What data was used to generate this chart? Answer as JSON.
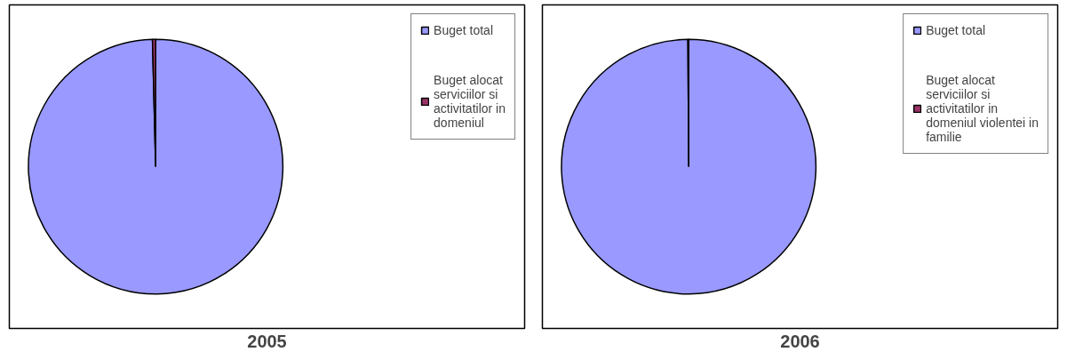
{
  "chart_data": [
    {
      "type": "pie",
      "title": "2005",
      "categories": [
        "Buget total",
        "Buget alocat serviciilor si activitatilor in domeniul"
      ],
      "values": [
        99.6,
        0.4
      ],
      "colors": [
        "#9999ff",
        "#993366"
      ],
      "legend": "right"
    },
    {
      "type": "pie",
      "title": "2006",
      "categories": [
        "Buget total",
        "Buget alocat serviciilor si activitatilor in domeniul violentei in familie"
      ],
      "values": [
        99.9,
        0.1
      ],
      "colors": [
        "#9999ff",
        "#993366"
      ],
      "legend": "right"
    }
  ]
}
